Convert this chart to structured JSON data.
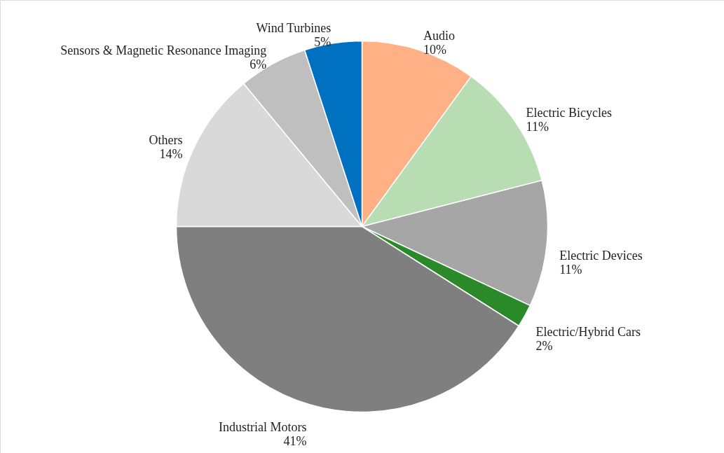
{
  "chart_data": {
    "type": "pie",
    "categories": [
      "Audio",
      "Electric Bicycles",
      "Electric Devices",
      "Electric/Hybrid Cars",
      "Industrial Motors",
      "Others",
      "Sensors & Magnetic Resonance Imaging",
      "Wind Turbines"
    ],
    "values": [
      10,
      11,
      11,
      2,
      41,
      14,
      6,
      5
    ],
    "value_labels": [
      "10%",
      "11%",
      "11%",
      "2%",
      "41%",
      "14%",
      "6%",
      "5%"
    ],
    "colors": [
      "#ffb084",
      "#b8ddb3",
      "#a6a6a6",
      "#2a8a2a",
      "#7f7f7f",
      "#d9d9d9",
      "#bfbfbf",
      "#0070c0"
    ]
  }
}
